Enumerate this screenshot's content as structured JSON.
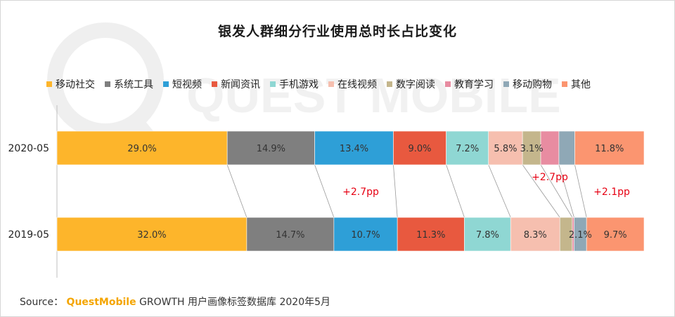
{
  "title": "银发人群细分行业使用总时长占比变化",
  "legend": [
    {
      "label": "移动社交",
      "color": "#FDB52B"
    },
    {
      "label": "系统工具",
      "color": "#7F7F7F"
    },
    {
      "label": "短视频",
      "color": "#2E9FD7"
    },
    {
      "label": "新闻资讯",
      "color": "#E8593F"
    },
    {
      "label": "手机游戏",
      "color": "#8FD7D3"
    },
    {
      "label": "在线视频",
      "color": "#F6BFAF"
    },
    {
      "label": "数字阅读",
      "color": "#C4B68C"
    },
    {
      "label": "教育学习",
      "color": "#E88CA1"
    },
    {
      "label": "移动购物",
      "color": "#8FA8B6"
    },
    {
      "label": "其他",
      "color": "#FB9570"
    }
  ],
  "chart_data": {
    "type": "bar",
    "orientation": "horizontal",
    "stacked": true,
    "percent_of_total": true,
    "categories": [
      "2020-05",
      "2019-05"
    ],
    "series": [
      {
        "name": "移动社交",
        "values": [
          29.0,
          32.0
        ],
        "labels": [
          "29.0%",
          "32.0%"
        ]
      },
      {
        "name": "系统工具",
        "values": [
          14.9,
          14.7
        ],
        "labels": [
          "14.9%",
          "14.7%"
        ]
      },
      {
        "name": "短视频",
        "values": [
          13.4,
          10.7
        ],
        "labels": [
          "13.4%",
          "10.7%"
        ]
      },
      {
        "name": "新闻资讯",
        "values": [
          9.0,
          11.3
        ],
        "labels": [
          "9.0%",
          "11.3%"
        ]
      },
      {
        "name": "手机游戏",
        "values": [
          7.2,
          7.8
        ],
        "labels": [
          "7.2%",
          "7.8%"
        ]
      },
      {
        "name": "在线视频",
        "values": [
          5.8,
          8.3
        ],
        "labels": [
          "5.8%",
          "8.3%"
        ]
      },
      {
        "name": "数字阅读",
        "values": [
          3.1,
          2.1
        ],
        "labels": [
          "3.1%",
          ""
        ]
      },
      {
        "name": "教育学习",
        "values": [
          3.1,
          0.3
        ],
        "labels": [
          "",
          ""
        ]
      },
      {
        "name": "移动购物",
        "values": [
          2.7,
          2.1
        ],
        "labels": [
          "",
          "2.1%"
        ]
      },
      {
        "name": "其他",
        "values": [
          11.8,
          9.7
        ],
        "labels": [
          "11.8%",
          "9.7%"
        ]
      }
    ],
    "annotations": [
      {
        "text": "+2.7pp",
        "series": "短视频"
      },
      {
        "text": "+2.7pp",
        "series": "教育学习"
      },
      {
        "text": "+2.1pp",
        "series": "其他"
      }
    ],
    "annotation_color": "#E60012",
    "connector_lines": true
  },
  "source": {
    "prefix": "Source：",
    "brand": "QuestMobile",
    "text": "GROWTH 用户画像标签数据库 2020年5月"
  },
  "watermark": "QUEST MOBILE"
}
